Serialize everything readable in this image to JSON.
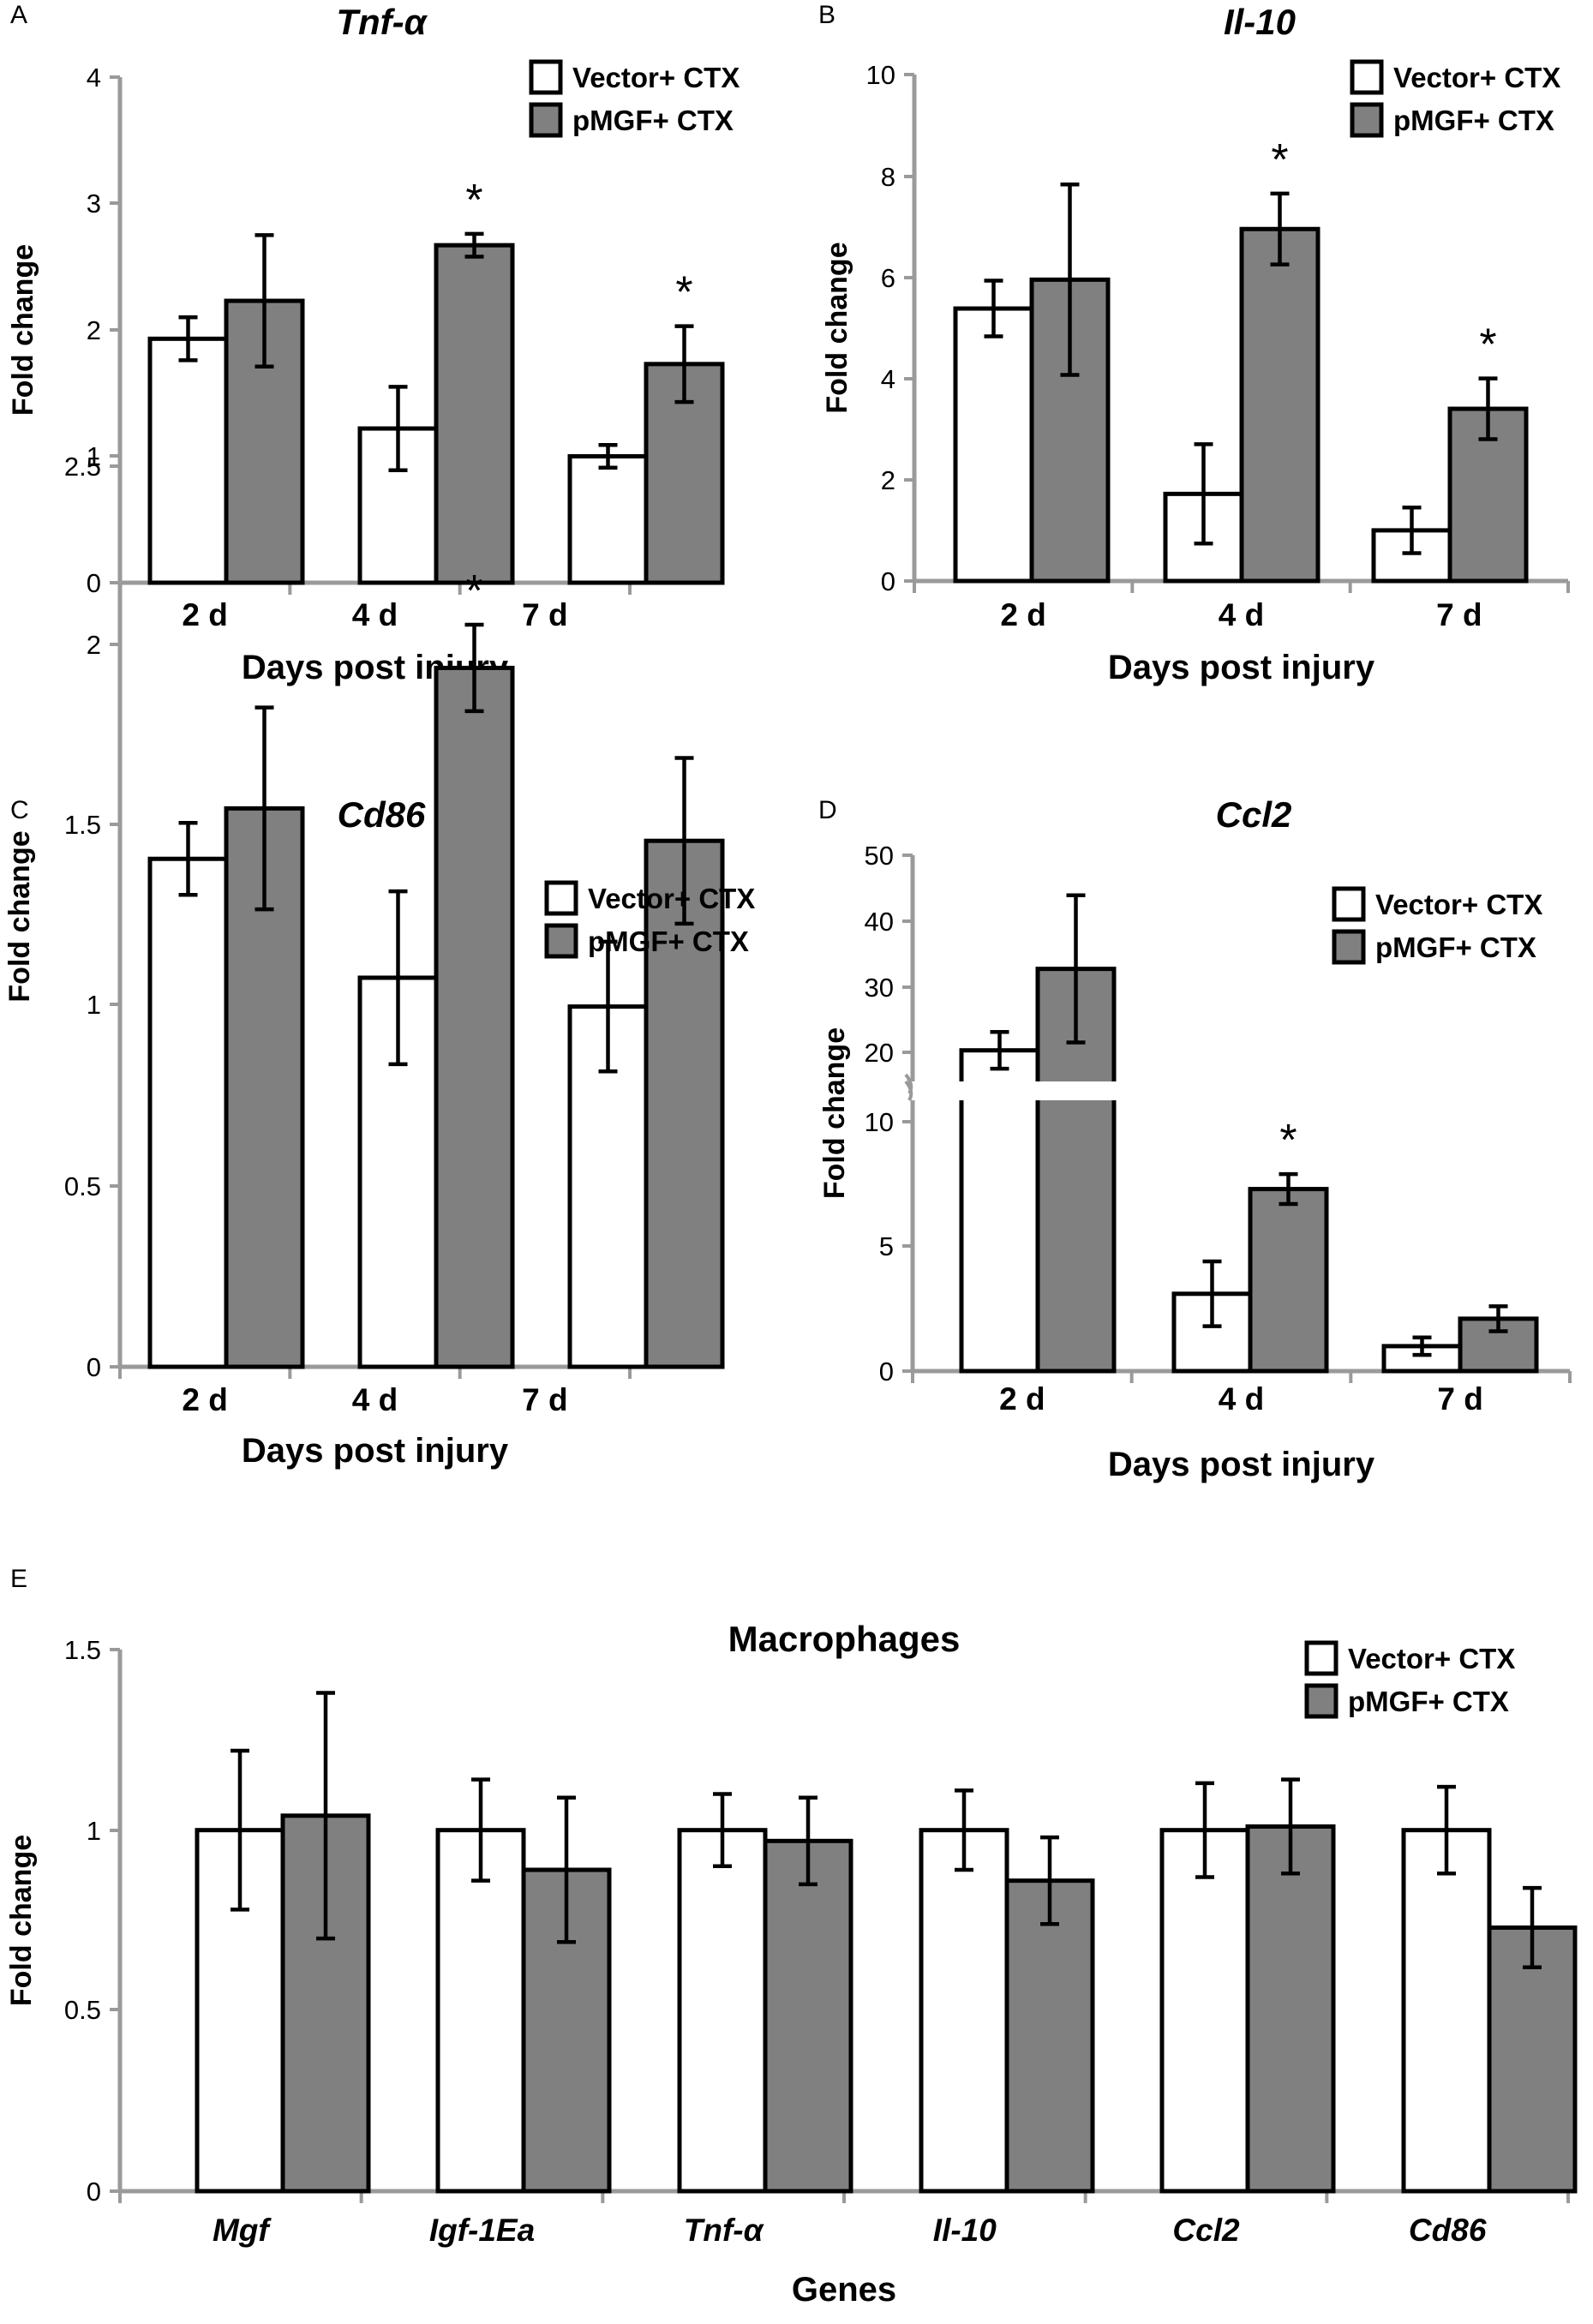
{
  "colors": {
    "vector": "#ffffff",
    "pmgf": "#808080",
    "axis": "#9a9a9a",
    "stroke": "#000000"
  },
  "legend": {
    "series1": "Vector+ CTX",
    "series2": "pMGF+ CTX"
  },
  "chart_data": [
    {
      "panel": "A",
      "type": "bar",
      "title": "Tnf-α",
      "title_italic": true,
      "ylabel": "Fold change",
      "xlabel": "Days post injury",
      "categories": [
        "2 d",
        "4 d",
        "7 d"
      ],
      "ylim": [
        0,
        4
      ],
      "yticks": [
        "0",
        "1",
        "2",
        "3",
        "4"
      ],
      "series": [
        {
          "name": "Vector+ CTX",
          "values": [
            1.93,
            1.22,
            1.0
          ],
          "errors": [
            0.17,
            0.33,
            0.09
          ]
        },
        {
          "name": "pMGF+ CTX",
          "values": [
            2.23,
            2.67,
            1.73
          ],
          "errors": [
            0.52,
            0.09,
            0.3
          ]
        }
      ],
      "significance": [
        {
          "series": 1,
          "index": 1,
          "label": "*"
        },
        {
          "series": 1,
          "index": 2,
          "label": "*"
        }
      ]
    },
    {
      "panel": "B",
      "type": "bar",
      "title": "Il-10",
      "title_italic": true,
      "ylabel": "Fold change",
      "xlabel": "Days post injury",
      "categories": [
        "2 d",
        "4 d",
        "7 d"
      ],
      "ylim": [
        0,
        10
      ],
      "yticks": [
        "0",
        "2",
        "4",
        "6",
        "8",
        "10"
      ],
      "series": [
        {
          "name": "Vector+ CTX",
          "values": [
            5.38,
            1.72,
            1.0
          ],
          "errors": [
            0.55,
            0.98,
            0.45
          ]
        },
        {
          "name": "pMGF+ CTX",
          "values": [
            5.95,
            6.95,
            3.4
          ],
          "errors": [
            1.88,
            0.7,
            0.6
          ]
        }
      ],
      "significance": [
        {
          "series": 1,
          "index": 1,
          "label": "*"
        },
        {
          "series": 1,
          "index": 2,
          "label": "*"
        }
      ]
    },
    {
      "panel": "C",
      "type": "bar",
      "title": "Cd86",
      "title_italic": true,
      "ylabel": "Fold change",
      "xlabel": "Days post injury",
      "categories": [
        "2 d",
        "4 d",
        "7 d"
      ],
      "ylim": [
        0,
        2.5
      ],
      "yticks": [
        "0",
        "0.5",
        "1",
        "1.5",
        "2",
        "2.5"
      ],
      "series": [
        {
          "name": "Vector+ CTX",
          "values": [
            1.41,
            1.08,
            1.0
          ],
          "errors": [
            0.1,
            0.24,
            0.18
          ]
        },
        {
          "name": "pMGF+ CTX",
          "values": [
            1.55,
            1.94,
            1.46
          ],
          "errors": [
            0.28,
            0.12,
            0.23
          ]
        }
      ],
      "significance": [
        {
          "series": 1,
          "index": 1,
          "label": "*"
        }
      ]
    },
    {
      "panel": "D",
      "type": "bar",
      "title": "Ccl2",
      "title_italic": true,
      "ylabel": "Fold change",
      "xlabel": "Days post injury",
      "categories": [
        "2 d",
        "4 d",
        "7 d"
      ],
      "ylim": [
        0,
        50
      ],
      "yticks": [
        "0",
        "5",
        "10",
        "20",
        "30",
        "40",
        "50"
      ],
      "broken_axis": {
        "lower_range": [
          0,
          10
        ],
        "upper_range": [
          10,
          50
        ]
      },
      "series": [
        {
          "name": "Vector+ CTX",
          "values": [
            20.3,
            3.1,
            1.0
          ],
          "errors": [
            2.8,
            1.3,
            0.35
          ]
        },
        {
          "name": "pMGF+ CTX",
          "values": [
            32.7,
            7.3,
            2.1
          ],
          "errors": [
            11.2,
            0.6,
            0.5
          ]
        }
      ],
      "significance": [
        {
          "series": 1,
          "index": 1,
          "label": "*"
        }
      ]
    },
    {
      "panel": "E",
      "type": "bar",
      "title": "Macrophages",
      "title_italic": false,
      "ylabel": "Fold change",
      "xlabel": "Genes",
      "categories": [
        "Mgf",
        "Igf-1Ea",
        "Tnf-α",
        "Il-10",
        "Ccl2",
        "Cd86"
      ],
      "categories_italic": true,
      "ylim": [
        0,
        1.5
      ],
      "yticks": [
        "0",
        "0.5",
        "1",
        "1.5"
      ],
      "series": [
        {
          "name": "Vector+ CTX",
          "values": [
            1.0,
            1.0,
            1.0,
            1.0,
            1.0,
            1.0
          ],
          "errors": [
            0.22,
            0.14,
            0.1,
            0.11,
            0.13,
            0.12
          ]
        },
        {
          "name": "pMGF+ CTX",
          "values": [
            1.04,
            0.89,
            0.97,
            0.86,
            1.01,
            0.73
          ],
          "errors": [
            0.34,
            0.2,
            0.12,
            0.12,
            0.13,
            0.11
          ]
        }
      ],
      "significance": []
    }
  ]
}
